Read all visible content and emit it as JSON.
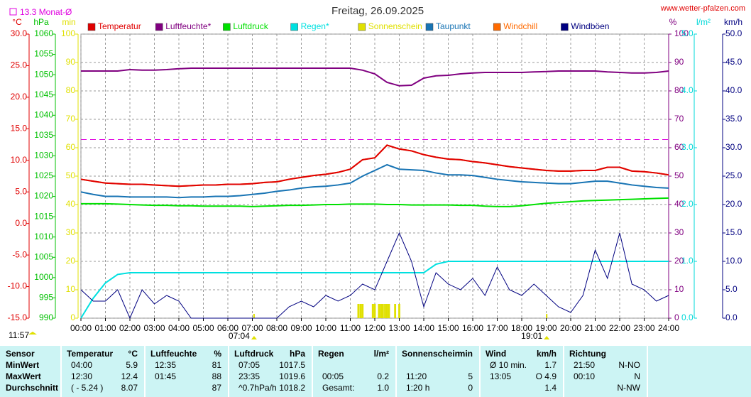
{
  "chart_data": {
    "type": "line",
    "title": "Freitag, 26.09.2025",
    "source": "www.wetter-pfalzen.com",
    "updated": "11:57",
    "grid": true,
    "reference": {
      "value": 13.3,
      "label": "13.3 Monat-Ø",
      "axis": "temp",
      "color": "#e000e0"
    },
    "sun_events": [
      {
        "value": 7.07,
        "label": "07:04"
      },
      {
        "value": 19.02,
        "label": "19:01"
      }
    ],
    "xlim": [
      0,
      24
    ],
    "xticks": [
      {
        "value": 0,
        "label": "00:00"
      },
      {
        "value": 1,
        "label": "01:00"
      },
      {
        "value": 2,
        "label": "02:00"
      },
      {
        "value": 3,
        "label": "03:00"
      },
      {
        "value": 4,
        "label": "04:00"
      },
      {
        "value": 5,
        "label": "05:00"
      },
      {
        "value": 6,
        "label": "06:00"
      },
      {
        "value": 7,
        "label": "07:00"
      },
      {
        "value": 8,
        "label": "08:00"
      },
      {
        "value": 9,
        "label": "09:00"
      },
      {
        "value": 10,
        "label": "10:00"
      },
      {
        "value": 11,
        "label": "11:00"
      },
      {
        "value": 12,
        "label": "12:00"
      },
      {
        "value": 13,
        "label": "13:00"
      },
      {
        "value": 14,
        "label": "14:00"
      },
      {
        "value": 15,
        "label": "15:00"
      },
      {
        "value": 16,
        "label": "16:00"
      },
      {
        "value": 17,
        "label": "17:00"
      },
      {
        "value": 18,
        "label": "18:00"
      },
      {
        "value": 19,
        "label": "19:00"
      },
      {
        "value": 20,
        "label": "20:00"
      },
      {
        "value": 21,
        "label": "21:00"
      },
      {
        "value": 22,
        "label": "22:00"
      },
      {
        "value": 23,
        "label": "23:00"
      },
      {
        "value": 24,
        "label": "24:00"
      }
    ],
    "axes": {
      "temp": {
        "label": "°C",
        "color": "#e00000",
        "lim": [
          -15,
          30
        ],
        "ticks": [
          {
            "value": 30,
            "label": "30.0"
          },
          {
            "value": 25,
            "label": "25.0"
          },
          {
            "value": 20,
            "label": "20.0"
          },
          {
            "value": 15,
            "label": "15.0"
          },
          {
            "value": 10,
            "label": "10.0"
          },
          {
            "value": 5,
            "label": "5.0"
          },
          {
            "value": 0,
            "label": "0.0"
          },
          {
            "value": -5,
            "label": "-5.0"
          },
          {
            "value": -10,
            "label": "-10.0"
          },
          {
            "value": -15,
            "label": "-15.0"
          }
        ]
      },
      "press": {
        "label": "hPa",
        "color": "#00c000",
        "lim": [
          990,
          1060
        ],
        "ticks": [
          1060,
          1055,
          1050,
          1045,
          1040,
          1035,
          1030,
          1025,
          1020,
          1015,
          1010,
          1005,
          1000,
          995,
          990
        ]
      },
      "sun": {
        "label": "min",
        "color": "#e0e000",
        "lim": [
          0,
          100
        ],
        "ticks": [
          100,
          90,
          80,
          70,
          60,
          50,
          40,
          30,
          20,
          10,
          0
        ]
      },
      "hum": {
        "label": "%",
        "color": "#800080",
        "lim": [
          0,
          100
        ],
        "ticks": [
          100,
          90,
          80,
          70,
          60,
          50,
          40,
          30,
          20,
          10,
          0
        ]
      },
      "rain": {
        "label": "l/m²",
        "color": "#00d8d8",
        "lim": [
          0,
          5
        ],
        "ticks": [
          {
            "value": 5,
            "label": "5.0"
          },
          {
            "value": 4,
            "label": "4.0"
          },
          {
            "value": 3,
            "label": "3.0"
          },
          {
            "value": 2,
            "label": "2.0"
          },
          {
            "value": 1,
            "label": "1.0"
          },
          {
            "value": 0,
            "label": "0.0"
          }
        ]
      },
      "wind": {
        "label": "km/h",
        "color": "#000080",
        "lim": [
          0,
          50
        ],
        "ticks": [
          {
            "value": 50,
            "label": "50.0"
          },
          {
            "value": 45,
            "label": "45.0"
          },
          {
            "value": 40,
            "label": "40.0"
          },
          {
            "value": 35,
            "label": "35.0"
          },
          {
            "value": 30,
            "label": "30.0"
          },
          {
            "value": 25,
            "label": "25.0"
          },
          {
            "value": 20,
            "label": "20.0"
          },
          {
            "value": 15,
            "label": "15.0"
          },
          {
            "value": 10,
            "label": "10.0"
          },
          {
            "value": 5,
            "label": "5.0"
          },
          {
            "value": 0,
            "label": "0.0"
          }
        ]
      }
    },
    "x": [
      0,
      0.5,
      1,
      1.5,
      2,
      2.5,
      3,
      3.5,
      4,
      4.5,
      5,
      5.5,
      6,
      6.5,
      7,
      7.5,
      8,
      8.5,
      9,
      9.5,
      10,
      10.5,
      11,
      11.5,
      12,
      12.5,
      13,
      13.5,
      14,
      14.5,
      15,
      15.5,
      16,
      16.5,
      17,
      17.5,
      18,
      18.5,
      19,
      19.5,
      20,
      20.5,
      21,
      21.5,
      22,
      22.5,
      23,
      23.5,
      24
    ],
    "series": [
      {
        "name": "Temperatur",
        "color": "#e00000",
        "axis": "temp",
        "values": [
          7.0,
          6.7,
          6.4,
          6.3,
          6.2,
          6.2,
          6.1,
          6.0,
          5.9,
          6.0,
          6.1,
          6.1,
          6.2,
          6.2,
          6.3,
          6.5,
          6.6,
          7.0,
          7.3,
          7.6,
          7.8,
          8.1,
          8.6,
          10.1,
          10.4,
          12.4,
          11.8,
          11.5,
          10.9,
          10.5,
          10.2,
          10.1,
          9.8,
          9.6,
          9.3,
          9.0,
          8.8,
          8.6,
          8.4,
          8.3,
          8.3,
          8.4,
          8.4,
          8.9,
          8.9,
          8.3,
          8.2,
          8.0,
          7.7
        ]
      },
      {
        "name": "Luftfeuchte*",
        "color": "#800080",
        "axis": "hum",
        "values": [
          87,
          87,
          87,
          87,
          87.5,
          87.3,
          87.3,
          87.5,
          87.8,
          88,
          88,
          88,
          88,
          88,
          88,
          88,
          88,
          88,
          88,
          88,
          88,
          88,
          88,
          87.3,
          86,
          83,
          81.8,
          82,
          84.5,
          85.3,
          85.5,
          86,
          86.3,
          86.5,
          86.5,
          86.5,
          86.5,
          86.7,
          86.8,
          87,
          87,
          87,
          87,
          86.7,
          86.5,
          86.3,
          86.3,
          86.5,
          87
        ]
      },
      {
        "name": "Luftdruck",
        "color": "#00e000",
        "axis": "press",
        "values": [
          1018.2,
          1018.2,
          1018.2,
          1018.1,
          1018.0,
          1017.9,
          1017.8,
          1017.8,
          1017.7,
          1017.7,
          1017.6,
          1017.6,
          1017.6,
          1017.6,
          1017.5,
          1017.6,
          1017.7,
          1017.8,
          1017.8,
          1017.9,
          1018.0,
          1018.0,
          1018.1,
          1018.1,
          1018.1,
          1018.0,
          1018.0,
          1017.9,
          1017.9,
          1017.9,
          1017.9,
          1017.8,
          1017.8,
          1017.6,
          1017.5,
          1017.5,
          1017.7,
          1018.0,
          1018.3,
          1018.5,
          1018.7,
          1018.9,
          1019.0,
          1019.1,
          1019.2,
          1019.3,
          1019.4,
          1019.5,
          1019.6
        ]
      },
      {
        "name": "Regen*",
        "color": "#00e0e0",
        "axis": "rain",
        "values": [
          0,
          0.35,
          0.62,
          0.77,
          0.8,
          0.8,
          0.8,
          0.8,
          0.8,
          0.8,
          0.8,
          0.8,
          0.8,
          0.8,
          0.8,
          0.8,
          0.8,
          0.8,
          0.8,
          0.8,
          0.8,
          0.8,
          0.8,
          0.8,
          0.8,
          0.8,
          0.8,
          0.8,
          0.8,
          0.95,
          1.0,
          1.0,
          1.0,
          1.0,
          1.0,
          1.0,
          1.0,
          1.0,
          1.0,
          1.0,
          1.0,
          1.0,
          1.0,
          1.0,
          1.0,
          1.0,
          1.0,
          1.0,
          1.0
        ]
      },
      {
        "name": "Sonnenschein",
        "color": "#e0e000",
        "axis": "sun",
        "kind": "bar",
        "x": [
          11.33,
          11.42,
          11.5,
          11.92,
          12.0,
          12.17,
          12.25,
          12.33,
          12.42,
          12.5,
          12.58,
          12.83,
          13.0
        ],
        "values": [
          5,
          5,
          5,
          5,
          5,
          5,
          5,
          5,
          5,
          5,
          5,
          5,
          5
        ]
      },
      {
        "name": "Taupunkt",
        "color": "#1874b4",
        "axis": "temp",
        "values": [
          5.0,
          4.6,
          4.3,
          4.3,
          4.2,
          4.2,
          4.2,
          4.2,
          4.1,
          4.2,
          4.2,
          4.3,
          4.3,
          4.4,
          4.6,
          4.8,
          5.1,
          5.3,
          5.6,
          5.8,
          5.9,
          6.1,
          6.4,
          7.5,
          8.4,
          9.3,
          8.6,
          8.5,
          8.4,
          8.0,
          7.7,
          7.7,
          7.6,
          7.3,
          7.0,
          6.8,
          6.6,
          6.5,
          6.4,
          6.3,
          6.3,
          6.5,
          6.7,
          6.7,
          6.4,
          6.1,
          5.9,
          5.7,
          5.6
        ]
      },
      {
        "name": "Windchill",
        "color": "#ff6a00",
        "axis": "temp",
        "values": [
          7.0,
          6.7,
          6.4,
          6.3,
          6.2,
          6.2,
          6.1,
          6.0,
          5.9,
          6.0,
          6.1,
          6.1,
          6.2,
          6.2,
          6.3,
          6.5,
          6.6,
          7.0,
          7.3,
          7.6,
          7.8,
          8.1,
          8.6,
          10.1,
          10.4,
          12.4,
          11.8,
          11.5,
          10.9,
          10.5,
          10.2,
          10.1,
          9.8,
          9.6,
          9.3,
          9.0,
          8.8,
          8.6,
          8.4,
          8.3,
          8.3,
          8.4,
          8.4,
          8.9,
          8.9,
          8.3,
          8.2,
          8.0,
          7.7
        ]
      },
      {
        "name": "Windböen",
        "color": "#000080",
        "axis": "wind",
        "values": [
          5,
          3,
          3,
          5,
          0,
          5,
          2.5,
          4,
          3,
          0,
          0,
          0,
          0,
          0,
          0,
          0,
          0,
          2,
          3,
          2,
          4,
          3,
          4,
          6,
          5,
          10,
          15,
          10,
          2,
          8,
          6,
          5,
          7,
          4,
          9,
          5,
          4,
          6,
          4,
          2,
          1,
          4,
          12,
          7,
          15,
          6,
          5,
          3,
          4
        ]
      }
    ],
    "draw_order": [
      6,
      3,
      4,
      2,
      7,
      1,
      5,
      0
    ],
    "table": {
      "header": [
        "Sensor",
        [
          "Temperatur",
          "°C"
        ],
        [
          "Luftfeuchte",
          "%"
        ],
        [
          "Luftdruck",
          "hPa"
        ],
        [
          "Regen",
          "l/m²"
        ],
        [
          "Sonnenschein",
          "min"
        ],
        [
          "Wind",
          "km/h"
        ],
        "Richtung"
      ],
      "rows": [
        [
          "MinWert",
          [
            "04:00",
            "5.9"
          ],
          [
            "12:35",
            "81"
          ],
          [
            "07:05",
            "1017.5"
          ],
          [
            null,
            null
          ],
          [
            null,
            null
          ],
          [
            "Ø 10 min.",
            "1.7"
          ],
          [
            "21:50",
            "N-NO"
          ]
        ],
        [
          "MaxWert",
          [
            "12:30",
            "12.4"
          ],
          [
            "01:45",
            "88"
          ],
          [
            "23:35",
            "1019.6"
          ],
          [
            "00:05",
            "0.2"
          ],
          [
            "11:20",
            "5"
          ],
          [
            "13:05",
            "O 4.9"
          ],
          [
            "00:10",
            "N"
          ]
        ],
        [
          "Durchschnitt",
          [
            "( - 5.24 )",
            "8.07"
          ],
          [
            null,
            "87"
          ],
          [
            "^0.7hPa/h",
            "1018.2"
          ],
          [
            "Gesamt:",
            "1.0"
          ],
          [
            "1:20 h",
            "0"
          ],
          [
            null,
            "1.4"
          ],
          [
            null,
            "N-NW"
          ]
        ]
      ]
    }
  }
}
